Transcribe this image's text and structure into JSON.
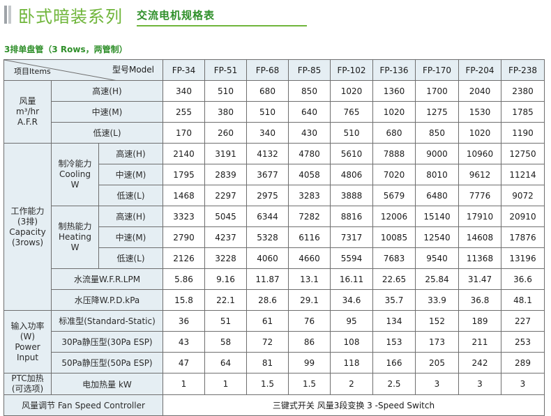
{
  "header": {
    "title": "卧式暗装系列",
    "subtitle": "交流电机规格表"
  },
  "section_title": "3排单盘管（3 Rows，两管制）",
  "table": {
    "corner_model": "型号Model",
    "corner_item": "项目Items",
    "models": [
      "FP-34",
      "FP-51",
      "FP-68",
      "FP-85",
      "FP-102",
      "FP-136",
      "FP-170",
      "FP-204",
      "FP-238"
    ],
    "airflow": {
      "label": [
        "风量",
        "m³/hr",
        "A.F.R"
      ],
      "rows": [
        {
          "speed": "高速(H)",
          "values": [
            "340",
            "510",
            "680",
            "850",
            "1020",
            "1360",
            "1700",
            "2040",
            "2380"
          ]
        },
        {
          "speed": "中速(M)",
          "values": [
            "255",
            "380",
            "510",
            "640",
            "765",
            "1020",
            "1275",
            "1530",
            "1785"
          ]
        },
        {
          "speed": "低速(L)",
          "values": [
            "170",
            "260",
            "340",
            "430",
            "510",
            "680",
            "850",
            "1020",
            "1190"
          ]
        }
      ]
    },
    "capacity": {
      "label": [
        "工作能力",
        "(3排)",
        "Capacity",
        "(3rows)"
      ],
      "cooling": {
        "label": [
          "制冷能力",
          "Cooling",
          "W"
        ],
        "rows": [
          {
            "speed": "高速(H)",
            "values": [
              "2140",
              "3191",
              "4132",
              "4780",
              "5610",
              "7888",
              "9000",
              "10960",
              "12750"
            ]
          },
          {
            "speed": "中速(M)",
            "values": [
              "1795",
              "2839",
              "3677",
              "4058",
              "4806",
              "7020",
              "8010",
              "9612",
              "11214"
            ]
          },
          {
            "speed": "低速(L)",
            "values": [
              "1468",
              "2297",
              "2975",
              "3283",
              "3888",
              "5679",
              "6480",
              "7776",
              "9072"
            ]
          }
        ]
      },
      "heating": {
        "label": [
          "制热能力",
          "Heating",
          "W"
        ],
        "rows": [
          {
            "speed": "高速(H)",
            "values": [
              "3323",
              "5045",
              "6344",
              "7282",
              "8816",
              "12006",
              "15140",
              "17910",
              "20910"
            ]
          },
          {
            "speed": "中速(M)",
            "values": [
              "2790",
              "4237",
              "5328",
              "6116",
              "7317",
              "10085",
              "12540",
              "14608",
              "17876"
            ]
          },
          {
            "speed": "低速(L)",
            "values": [
              "2126",
              "3228",
              "4060",
              "4660",
              "5594",
              "7683",
              "9540",
              "11368",
              "13196"
            ]
          }
        ]
      },
      "water_flow": {
        "label": "水流量W.F.R.LPM",
        "values": [
          "5.86",
          "9.16",
          "11.87",
          "13.1",
          "16.11",
          "22.65",
          "25.84",
          "31.47",
          "36.6"
        ]
      },
      "water_drop": {
        "label": "水压降W.P.D.kPa",
        "values": [
          "15.8",
          "22.1",
          "28.6",
          "29.1",
          "34.6",
          "35.7",
          "33.9",
          "36.8",
          "48.1"
        ]
      }
    },
    "power": {
      "label": [
        "输入功率",
        "(W)",
        "Power Input"
      ],
      "rows": [
        {
          "type": "标准型(Standard-Static)",
          "values": [
            "36",
            "51",
            "61",
            "76",
            "95",
            "134",
            "152",
            "189",
            "227"
          ]
        },
        {
          "type": "30Pa静压型(30Pa ESP)",
          "values": [
            "43",
            "58",
            "72",
            "86",
            "108",
            "153",
            "173",
            "211",
            "253"
          ]
        },
        {
          "type": "50Pa静压型(50Pa ESP)",
          "values": [
            "47",
            "64",
            "81",
            "99",
            "118",
            "166",
            "205",
            "242",
            "289"
          ]
        }
      ]
    },
    "ptc": {
      "label": [
        "PTC加热",
        "(可选项)"
      ],
      "sub_label": "电加热量 kW",
      "values": [
        "1",
        "1",
        "1.5",
        "1.5",
        "2",
        "2.5",
        "3",
        "3",
        "3"
      ]
    },
    "fan_control": {
      "label": "风量调节  Fan Speed Controller",
      "value": "三键式开关  风量3段变换 3 -Speed Switch"
    }
  }
}
